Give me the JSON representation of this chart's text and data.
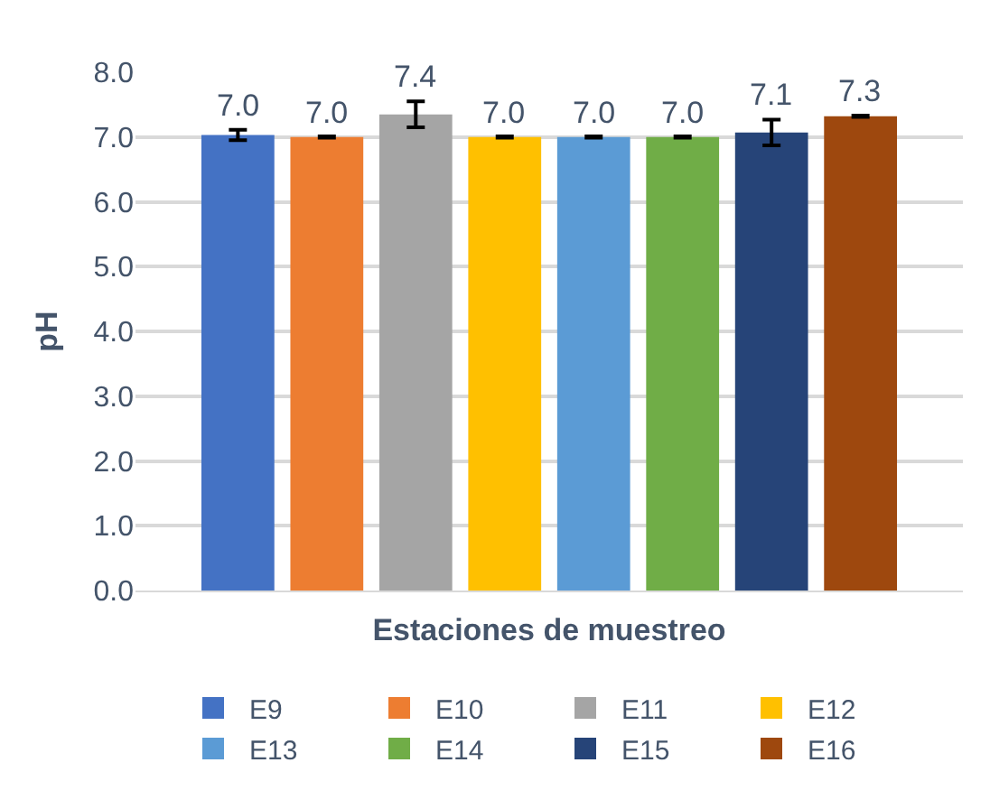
{
  "chart_data": {
    "type": "bar",
    "xlabel": "Estaciones de muestreo",
    "ylabel": "pH",
    "categories": [
      null
    ],
    "series": [
      {
        "name": "E9",
        "color": "#4472c4",
        "values": [
          7.03
        ],
        "errors": [
          0.08
        ],
        "value_labels": [
          "7.0"
        ]
      },
      {
        "name": "E10",
        "color": "#ed7d31",
        "values": [
          7.0
        ],
        "errors": [
          0.01
        ],
        "value_labels": [
          "7.0"
        ]
      },
      {
        "name": "E11",
        "color": "#a5a5a5",
        "values": [
          7.35
        ],
        "errors": [
          0.2
        ],
        "value_labels": [
          "7.4"
        ]
      },
      {
        "name": "E12",
        "color": "#ffc000",
        "values": [
          7.0
        ],
        "errors": [
          0.01
        ],
        "value_labels": [
          "7.0"
        ]
      },
      {
        "name": "E13",
        "color": "#5b9bd5",
        "values": [
          7.0
        ],
        "errors": [
          0.01
        ],
        "value_labels": [
          "7.0"
        ]
      },
      {
        "name": "E14",
        "color": "#70ad47",
        "values": [
          7.0
        ],
        "errors": [
          0.01
        ],
        "value_labels": [
          "7.0"
        ]
      },
      {
        "name": "E15",
        "color": "#264478",
        "values": [
          7.07
        ],
        "errors": [
          0.2
        ],
        "value_labels": [
          "7.1"
        ]
      },
      {
        "name": "E16",
        "color": "#9e480e",
        "values": [
          7.32
        ],
        "errors": [
          0.01
        ],
        "value_labels": [
          "7.3"
        ]
      }
    ],
    "ylim": [
      0,
      8
    ],
    "yticks": [
      {
        "value": 0,
        "label": "0.0"
      },
      {
        "value": 1,
        "label": "1.0"
      },
      {
        "value": 2,
        "label": "2.0"
      },
      {
        "value": 3,
        "label": "3.0"
      },
      {
        "value": 4,
        "label": "4.0"
      },
      {
        "value": 5,
        "label": "5.0"
      },
      {
        "value": 6,
        "label": "6.0"
      },
      {
        "value": 7,
        "label": "7.0"
      },
      {
        "value": 8,
        "label": "8.0"
      }
    ],
    "grid": "y",
    "legend": "bottom",
    "tick_labels": "y"
  }
}
